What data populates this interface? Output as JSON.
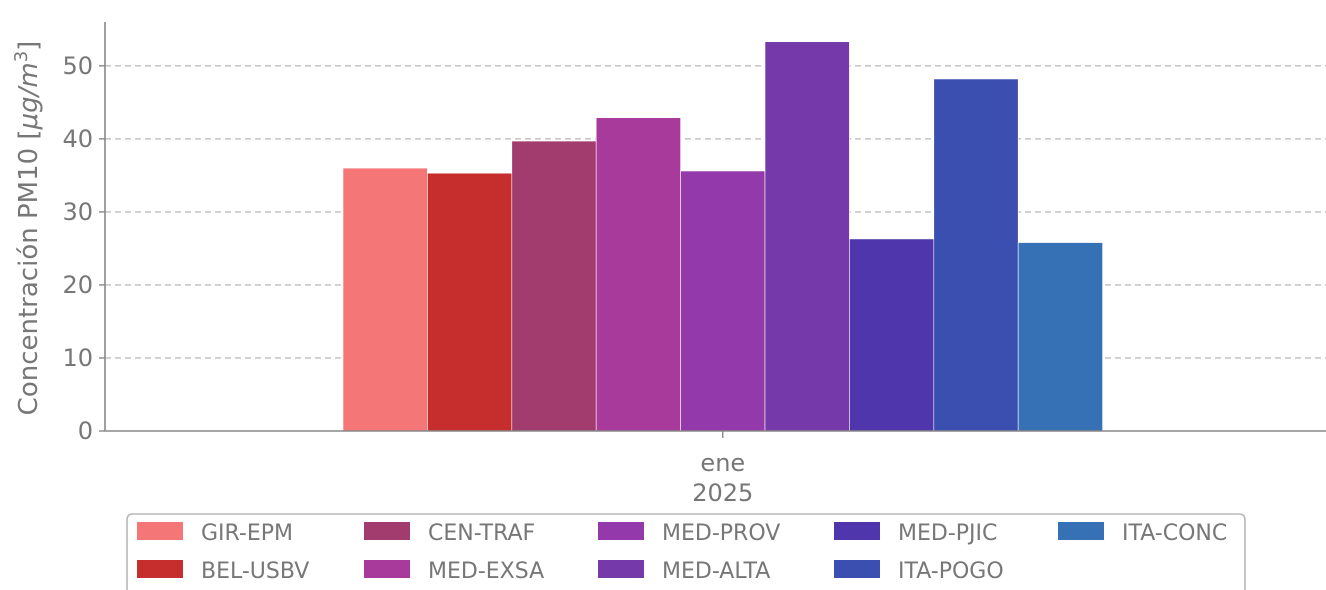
{
  "chart_data": {
    "type": "bar",
    "categories": [
      "ene\n2025"
    ],
    "x_tick_lines": [
      "ene",
      "2025"
    ],
    "ylabel_main": "Concentración PM10 [",
    "ylabel_unit": "μg/m",
    "ylabel_sup": "3",
    "ylabel_close": "]",
    "ylim": [
      0,
      56
    ],
    "yticks": [
      0,
      10,
      20,
      30,
      40,
      50
    ],
    "grid": "horizontal-dashed",
    "legend_position": "bottom",
    "series": [
      {
        "name": "GIR-EPM",
        "color": "#f47676",
        "values": [
          36.0
        ]
      },
      {
        "name": "BEL-USBV",
        "color": "#c62d2d",
        "values": [
          35.3
        ]
      },
      {
        "name": "CEN-TRAF",
        "color": "#a33c6e",
        "values": [
          39.7
        ]
      },
      {
        "name": "MED-EXSA",
        "color": "#a73a9b",
        "values": [
          42.9
        ]
      },
      {
        "name": "MED-PROV",
        "color": "#9439ab",
        "values": [
          35.6
        ]
      },
      {
        "name": "MED-ALTA",
        "color": "#7539aa",
        "values": [
          53.3
        ]
      },
      {
        "name": "MED-PJIC",
        "color": "#4f36ad",
        "values": [
          26.3
        ]
      },
      {
        "name": "ITA-POGO",
        "color": "#3a4fb0",
        "values": [
          48.2
        ]
      },
      {
        "name": "ITA-CONC",
        "color": "#3670b5",
        "values": [
          25.8
        ]
      }
    ]
  }
}
